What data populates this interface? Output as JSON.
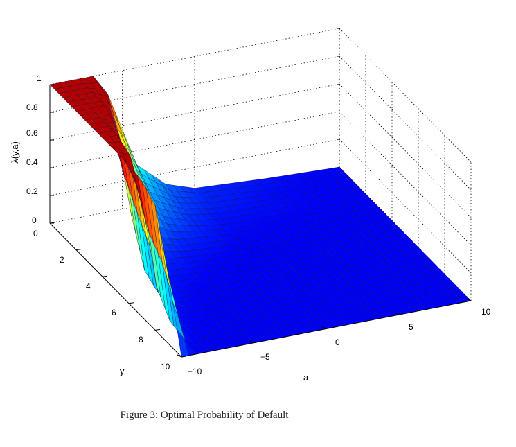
{
  "caption": "Figure 3: Optimal Probability of Default",
  "chart_data": {
    "type": "surface",
    "title": "",
    "xlabel": "a",
    "ylabel": "y",
    "zlabel": "λ(y,a)",
    "xlim": [
      -10,
      10
    ],
    "ylim": [
      0,
      10
    ],
    "zlim": [
      0,
      1
    ],
    "xticks": [
      "−10",
      "−5",
      "0",
      "5",
      "10"
    ],
    "yticks": [
      "0",
      "2",
      "4",
      "6",
      "8",
      "10"
    ],
    "zticks": [
      "0",
      "0.2",
      "0.4",
      "0.6",
      "0.8",
      "1"
    ],
    "grid": true,
    "colormap": "jet",
    "description_of_values": "λ(y,a) ≈ 1 for a ≈ −10 at low y, dropping sharply to ≈ 0 for most of the domain",
    "surface": {
      "a": [
        -10,
        -9,
        -8,
        -7,
        -6,
        -4,
        -2,
        0,
        5,
        10
      ],
      "y": [
        0,
        1,
        2,
        3,
        4,
        5,
        6,
        7,
        8,
        9,
        10
      ],
      "z": [
        [
          1.0,
          1.0,
          1.0,
          1.0,
          0.85,
          0.3,
          0.12,
          0.05,
          0.02,
          0.0
        ],
        [
          1.0,
          1.0,
          1.0,
          0.95,
          0.6,
          0.2,
          0.08,
          0.04,
          0.01,
          0.0
        ],
        [
          1.0,
          1.0,
          1.0,
          0.7,
          0.35,
          0.12,
          0.05,
          0.02,
          0.01,
          0.0
        ],
        [
          1.0,
          1.0,
          0.9,
          0.3,
          0.12,
          0.05,
          0.03,
          0.01,
          0.0,
          0.0
        ],
        [
          1.0,
          1.0,
          0.4,
          0.1,
          0.05,
          0.02,
          0.01,
          0.0,
          0.0,
          0.0
        ],
        [
          1.0,
          0.95,
          0.1,
          0.04,
          0.02,
          0.01,
          0.0,
          0.0,
          0.0,
          0.0
        ],
        [
          1.0,
          0.7,
          0.04,
          0.02,
          0.01,
          0.0,
          0.0,
          0.0,
          0.0,
          0.0
        ],
        [
          0.98,
          0.2,
          0.02,
          0.01,
          0.0,
          0.0,
          0.0,
          0.0,
          0.0,
          0.0
        ],
        [
          0.9,
          0.05,
          0.01,
          0.0,
          0.0,
          0.0,
          0.0,
          0.0,
          0.0,
          0.0
        ],
        [
          0.5,
          0.02,
          0.0,
          0.0,
          0.0,
          0.0,
          0.0,
          0.0,
          0.0,
          0.0
        ],
        [
          0.0,
          0.0,
          0.0,
          0.0,
          0.0,
          0.0,
          0.0,
          0.0,
          0.0,
          0.0
        ]
      ]
    }
  }
}
